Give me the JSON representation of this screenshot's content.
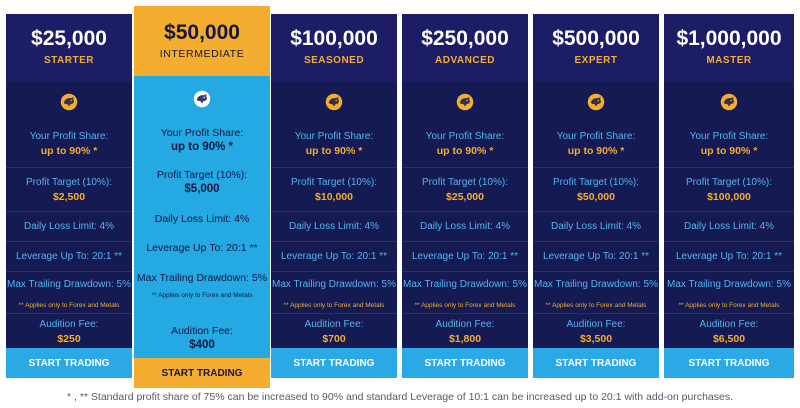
{
  "labels": {
    "profit_share": "Your Profit Share:",
    "profit_target": "Profit Target (10%):",
    "daily_loss": "Daily Loss Limit: 4%",
    "leverage": "Leverage Up To: 20:1 **",
    "trailing": "Max Trailing Drawdown: 5%",
    "applies_note": "** Applies only to Forex and Metals",
    "audition_fee": "Audition Fee:",
    "button": "START TRADING"
  },
  "plans": [
    {
      "price": "$25,000",
      "tier": "STARTER",
      "share": "up to 90% *",
      "target": "$2,500",
      "fee": "$250"
    },
    {
      "price": "$50,000",
      "tier": "INTERMEDIATE",
      "share": "up to 90% *",
      "target": "$5,000",
      "fee": "$400"
    },
    {
      "price": "$100,000",
      "tier": "SEASONED",
      "share": "up to 90% *",
      "target": "$10,000",
      "fee": "$700"
    },
    {
      "price": "$250,000",
      "tier": "ADVANCED",
      "share": "up to 90% *",
      "target": "$25,000",
      "fee": "$1,800"
    },
    {
      "price": "$500,000",
      "tier": "EXPERT",
      "share": "up to 90% *",
      "target": "$50,000",
      "fee": "$3,500"
    },
    {
      "price": "$1,000,000",
      "tier": "MASTER",
      "share": "up to 90% *",
      "target": "$100,000",
      "fee": "$6,500"
    }
  ],
  "icon": "bull-logo-icon",
  "colors": {
    "navy": "#151a52",
    "header_navy": "#1c1d66",
    "accent_orange": "#f5ad2f",
    "accent_blue": "#2ba8e6",
    "label_blue": "#52b5f3"
  },
  "footnote": "* , ** Standard profit share of 75% can be increased to 90% and standard Leverage of 10:1 can be increased up to 20:1 with add-on purchases."
}
